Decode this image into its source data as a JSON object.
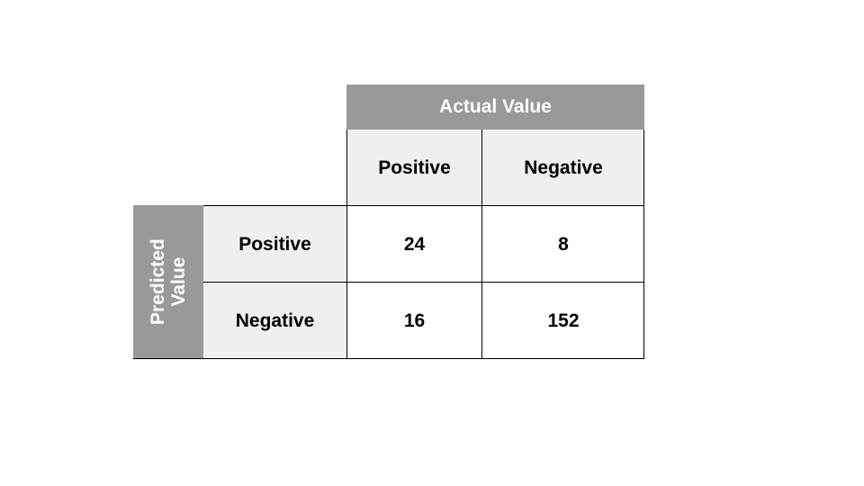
{
  "matrix": {
    "actual_header": "Actual Value",
    "predicted_header": "Predicted\nValue",
    "actual_labels": [
      "Positive",
      "Negative"
    ],
    "predicted_labels": [
      "Positive",
      "Negative"
    ],
    "values": [
      [
        "24",
        "8"
      ],
      [
        "16",
        "152"
      ]
    ]
  },
  "colors": {
    "header_bg": "#999999",
    "label_bg": "#efefef",
    "header_text": "#ffffff"
  }
}
